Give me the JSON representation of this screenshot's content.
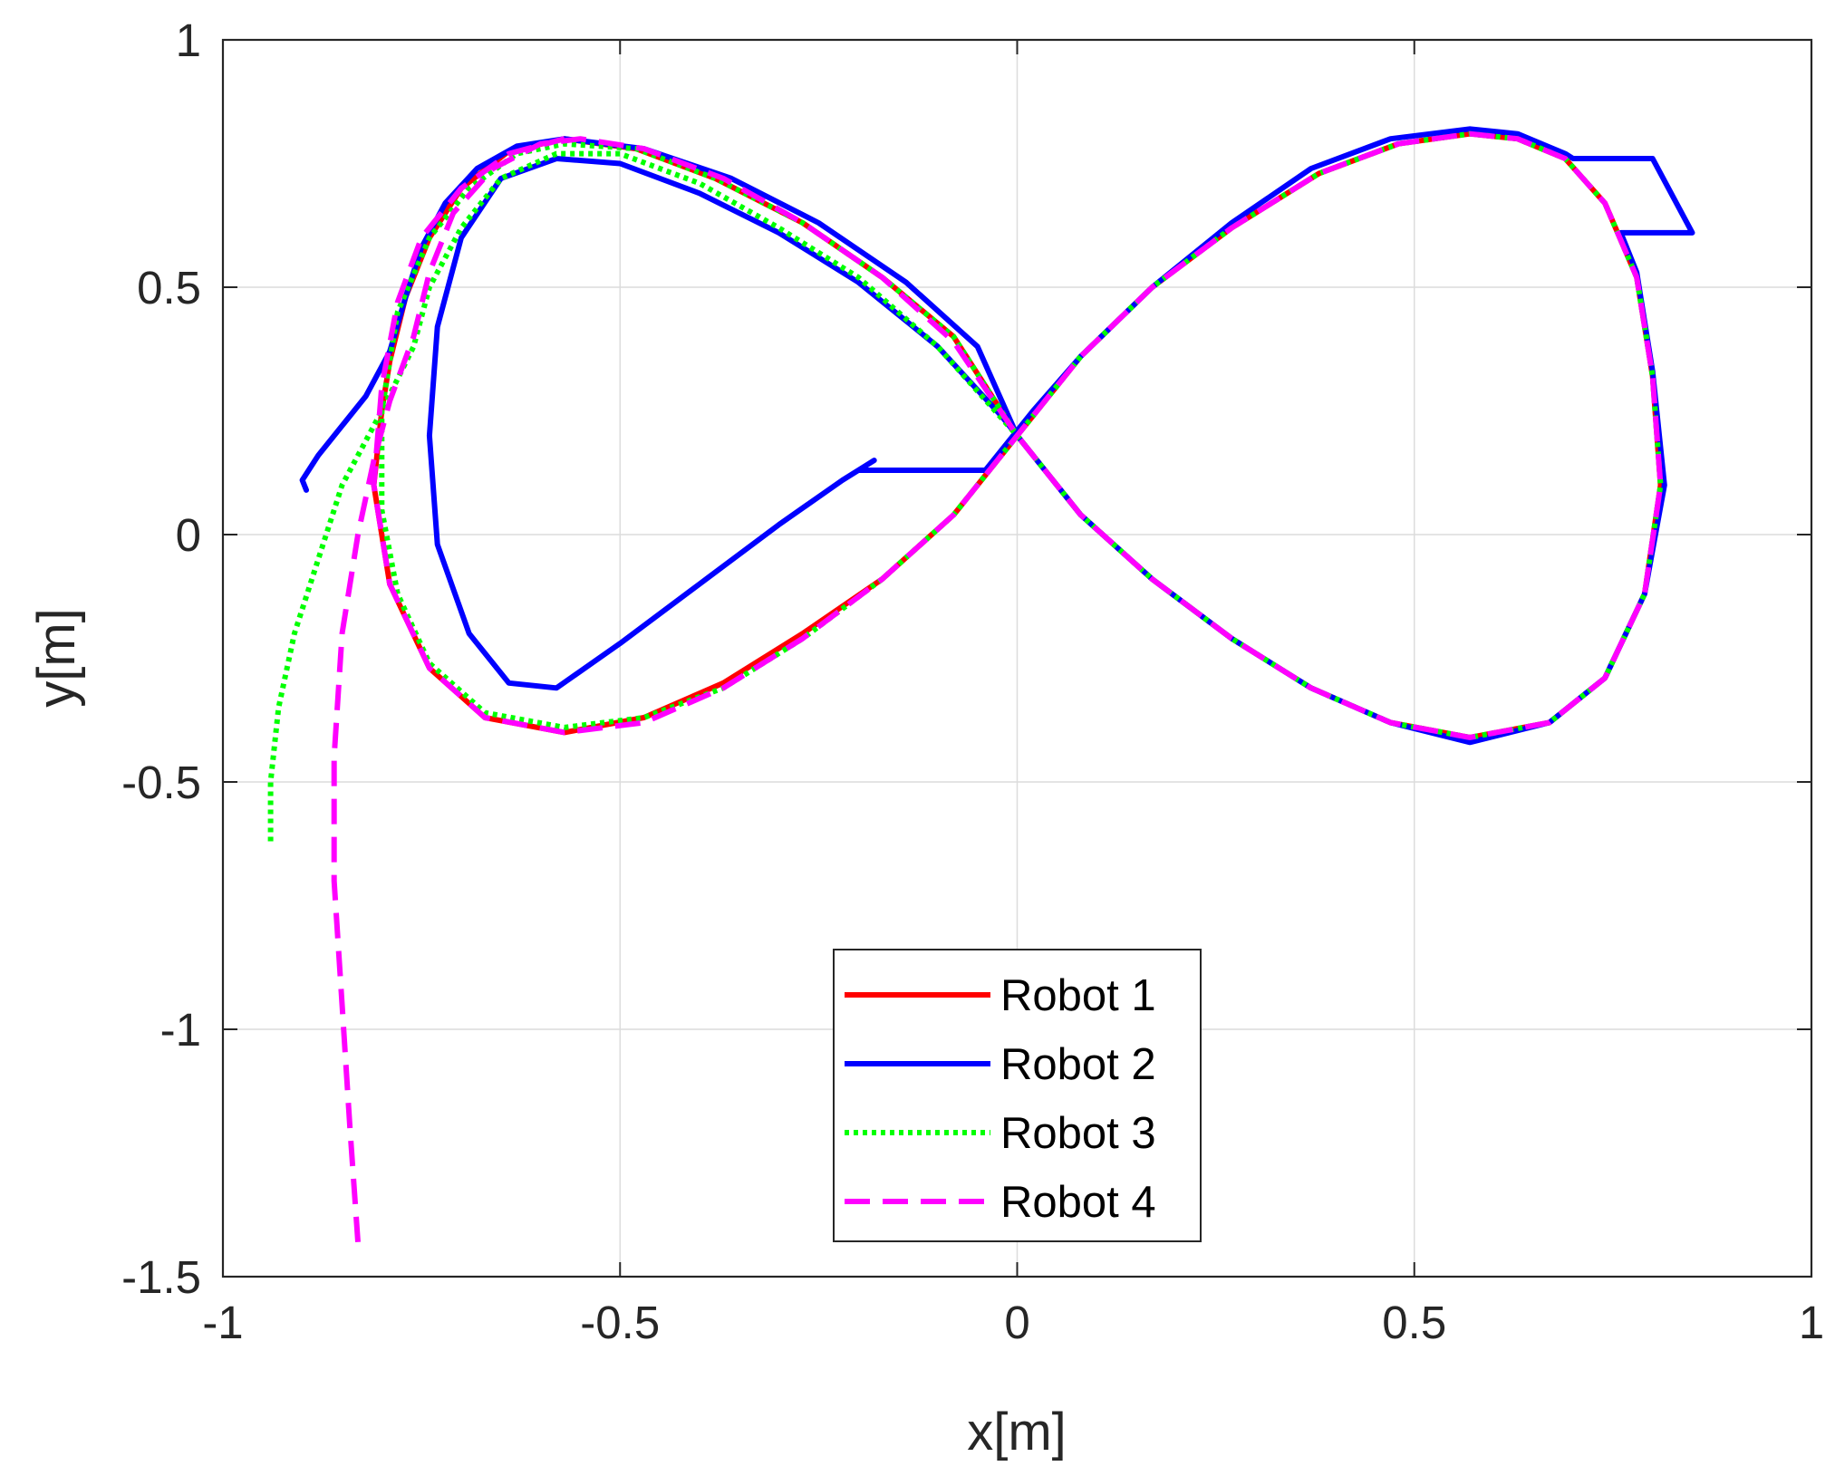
{
  "chart_data": {
    "type": "line",
    "title": "",
    "xlabel": "x[m]",
    "ylabel": "y[m]",
    "xlim": [
      -1,
      1
    ],
    "ylim": [
      -1.5,
      1
    ],
    "grid": true,
    "legend_position": "bottom-center",
    "xticks": [
      -1,
      -0.5,
      0,
      0.5,
      1
    ],
    "xtick_labels": [
      "-1",
      "-0.5",
      "0",
      "0.5",
      "1"
    ],
    "yticks": [
      -1.5,
      -1,
      -0.5,
      0,
      0.5,
      1
    ],
    "ytick_labels": [
      "-1.5",
      "-1",
      "-0.5",
      "0",
      "0.5",
      "1"
    ],
    "series": [
      {
        "name": "Robot 1",
        "color": "#ff0000",
        "style": "solid",
        "points": [
          [
            -0.79,
            0.35
          ],
          [
            -0.77,
            0.48
          ],
          [
            -0.74,
            0.6
          ],
          [
            -0.7,
            0.7
          ],
          [
            -0.64,
            0.775
          ],
          [
            -0.57,
            0.8
          ],
          [
            -0.48,
            0.78
          ],
          [
            -0.38,
            0.72
          ],
          [
            -0.27,
            0.63
          ],
          [
            -0.17,
            0.52
          ],
          [
            -0.08,
            0.4
          ],
          [
            0,
            0.2
          ],
          [
            0.08,
            0.04
          ],
          [
            0.17,
            -0.09
          ],
          [
            0.27,
            -0.21
          ],
          [
            0.37,
            -0.31
          ],
          [
            0.47,
            -0.38
          ],
          [
            0.57,
            -0.41
          ],
          [
            0.67,
            -0.38
          ],
          [
            0.74,
            -0.29
          ],
          [
            0.79,
            -0.12
          ],
          [
            0.81,
            0.1
          ],
          [
            0.8,
            0.32
          ],
          [
            0.78,
            0.52
          ],
          [
            0.74,
            0.67
          ],
          [
            0.69,
            0.76
          ],
          [
            0.63,
            0.8
          ],
          [
            0.57,
            0.81
          ],
          [
            0.48,
            0.79
          ],
          [
            0.38,
            0.73
          ],
          [
            0.27,
            0.62
          ],
          [
            0.17,
            0.5
          ],
          [
            0.08,
            0.36
          ],
          [
            0,
            0.2
          ],
          [
            -0.08,
            0.04
          ],
          [
            -0.17,
            -0.09
          ],
          [
            -0.27,
            -0.2
          ],
          [
            -0.37,
            -0.3
          ],
          [
            -0.47,
            -0.37
          ],
          [
            -0.57,
            -0.4
          ],
          [
            -0.67,
            -0.37
          ],
          [
            -0.74,
            -0.27
          ],
          [
            -0.79,
            -0.1
          ],
          [
            -0.81,
            0.1
          ],
          [
            -0.8,
            0.25
          ],
          [
            -0.79,
            0.35
          ]
        ]
      },
      {
        "name": "Robot 2",
        "color": "#0000ff",
        "style": "solid",
        "points": [
          [
            -0.895,
            0.09
          ],
          [
            -0.9,
            0.11
          ],
          [
            -0.88,
            0.16
          ],
          [
            -0.85,
            0.22
          ],
          [
            -0.82,
            0.28
          ],
          [
            -0.79,
            0.37
          ],
          [
            -0.77,
            0.48
          ],
          [
            -0.75,
            0.58
          ],
          [
            -0.72,
            0.67
          ],
          [
            -0.68,
            0.74
          ],
          [
            -0.63,
            0.785
          ],
          [
            -0.57,
            0.8
          ],
          [
            -0.47,
            0.78
          ],
          [
            -0.36,
            0.72
          ],
          [
            -0.25,
            0.63
          ],
          [
            -0.14,
            0.51
          ],
          [
            -0.05,
            0.38
          ],
          [
            0,
            0.2
          ],
          [
            0.08,
            0.04
          ],
          [
            0.17,
            -0.09
          ],
          [
            0.27,
            -0.21
          ],
          [
            0.37,
            -0.31
          ],
          [
            0.47,
            -0.38
          ],
          [
            0.57,
            -0.42
          ],
          [
            0.67,
            -0.38
          ],
          [
            0.74,
            -0.29
          ],
          [
            0.79,
            -0.12
          ],
          [
            0.815,
            0.1
          ],
          [
            0.8,
            0.33
          ],
          [
            0.78,
            0.53
          ],
          [
            0.76,
            0.61
          ],
          [
            0.85,
            0.61
          ],
          [
            0.8,
            0.76
          ],
          [
            0.7,
            0.76
          ],
          [
            0.69,
            0.77
          ],
          [
            0.63,
            0.81
          ],
          [
            0.57,
            0.82
          ],
          [
            0.47,
            0.8
          ],
          [
            0.37,
            0.74
          ],
          [
            0.27,
            0.63
          ],
          [
            0.17,
            0.5
          ],
          [
            0.08,
            0.36
          ],
          [
            0.02,
            0.25
          ],
          [
            -0.04,
            0.13
          ],
          [
            -0.2,
            0.13
          ],
          [
            -0.18,
            0.15
          ],
          [
            -0.22,
            0.11
          ],
          [
            -0.3,
            0.02
          ],
          [
            -0.4,
            -0.1
          ],
          [
            -0.5,
            -0.22
          ],
          [
            -0.58,
            -0.31
          ],
          [
            -0.64,
            -0.3
          ],
          [
            -0.69,
            -0.2
          ],
          [
            -0.73,
            -0.02
          ],
          [
            -0.74,
            0.2
          ],
          [
            -0.73,
            0.42
          ],
          [
            -0.7,
            0.6
          ],
          [
            -0.65,
            0.72
          ],
          [
            -0.58,
            0.76
          ],
          [
            -0.5,
            0.75
          ],
          [
            -0.4,
            0.69
          ],
          [
            -0.3,
            0.61
          ],
          [
            -0.2,
            0.51
          ],
          [
            -0.1,
            0.38
          ],
          [
            -0.02,
            0.24
          ],
          [
            0,
            0.2
          ]
        ]
      },
      {
        "name": "Robot 3",
        "color": "#00ff00",
        "style": "dotted",
        "points": [
          [
            -0.94,
            -0.62
          ],
          [
            -0.94,
            -0.5
          ],
          [
            -0.93,
            -0.35
          ],
          [
            -0.91,
            -0.2
          ],
          [
            -0.88,
            -0.05
          ],
          [
            -0.85,
            0.1
          ],
          [
            -0.8,
            0.25
          ],
          [
            -0.76,
            0.38
          ],
          [
            -0.74,
            0.5
          ],
          [
            -0.7,
            0.62
          ],
          [
            -0.65,
            0.72
          ],
          [
            -0.58,
            0.77
          ],
          [
            -0.5,
            0.77
          ],
          [
            -0.4,
            0.71
          ],
          [
            -0.3,
            0.62
          ],
          [
            -0.2,
            0.52
          ],
          [
            -0.1,
            0.38
          ],
          [
            0,
            0.2
          ],
          [
            0.08,
            0.04
          ],
          [
            0.17,
            -0.09
          ],
          [
            0.27,
            -0.21
          ],
          [
            0.37,
            -0.31
          ],
          [
            0.47,
            -0.38
          ],
          [
            0.57,
            -0.41
          ],
          [
            0.67,
            -0.38
          ],
          [
            0.74,
            -0.29
          ],
          [
            0.79,
            -0.12
          ],
          [
            0.81,
            0.1
          ],
          [
            0.8,
            0.32
          ],
          [
            0.78,
            0.52
          ],
          [
            0.74,
            0.67
          ],
          [
            0.69,
            0.76
          ],
          [
            0.63,
            0.8
          ],
          [
            0.57,
            0.81
          ],
          [
            0.48,
            0.79
          ],
          [
            0.38,
            0.73
          ],
          [
            0.27,
            0.62
          ],
          [
            0.17,
            0.5
          ],
          [
            0.08,
            0.36
          ],
          [
            0,
            0.2
          ],
          [
            -0.08,
            0.04
          ],
          [
            -0.17,
            -0.09
          ],
          [
            -0.27,
            -0.21
          ],
          [
            -0.37,
            -0.31
          ],
          [
            -0.47,
            -0.37
          ],
          [
            -0.57,
            -0.39
          ],
          [
            -0.67,
            -0.36
          ],
          [
            -0.74,
            -0.26
          ],
          [
            -0.78,
            -0.12
          ],
          [
            -0.8,
            0.05
          ],
          [
            -0.8,
            0.25
          ],
          [
            -0.78,
            0.45
          ],
          [
            -0.74,
            0.6
          ],
          [
            -0.69,
            0.7
          ],
          [
            -0.63,
            0.77
          ],
          [
            -0.57,
            0.79
          ],
          [
            -0.48,
            0.78
          ],
          [
            -0.38,
            0.72
          ],
          [
            -0.27,
            0.63
          ],
          [
            -0.17,
            0.52
          ],
          [
            -0.08,
            0.4
          ],
          [
            0,
            0.2
          ]
        ]
      },
      {
        "name": "Robot 4",
        "color": "#ff00ff",
        "style": "dashed",
        "points": [
          [
            -0.83,
            -1.43
          ],
          [
            -0.84,
            -1.2
          ],
          [
            -0.85,
            -0.95
          ],
          [
            -0.86,
            -0.7
          ],
          [
            -0.86,
            -0.45
          ],
          [
            -0.85,
            -0.2
          ],
          [
            -0.83,
            0.0
          ],
          [
            -0.81,
            0.15
          ],
          [
            -0.79,
            0.27
          ],
          [
            -0.76,
            0.4
          ],
          [
            -0.74,
            0.53
          ],
          [
            -0.71,
            0.65
          ],
          [
            -0.66,
            0.74
          ],
          [
            -0.6,
            0.79
          ],
          [
            -0.55,
            0.8
          ],
          [
            -0.47,
            0.78
          ],
          [
            -0.37,
            0.72
          ],
          [
            -0.27,
            0.63
          ],
          [
            -0.17,
            0.52
          ],
          [
            -0.08,
            0.39
          ],
          [
            0,
            0.2
          ],
          [
            0.08,
            0.04
          ],
          [
            0.17,
            -0.09
          ],
          [
            0.27,
            -0.21
          ],
          [
            0.37,
            -0.31
          ],
          [
            0.47,
            -0.38
          ],
          [
            0.57,
            -0.41
          ],
          [
            0.67,
            -0.38
          ],
          [
            0.74,
            -0.29
          ],
          [
            0.79,
            -0.12
          ],
          [
            0.81,
            0.1
          ],
          [
            0.8,
            0.32
          ],
          [
            0.78,
            0.52
          ],
          [
            0.74,
            0.67
          ],
          [
            0.69,
            0.76
          ],
          [
            0.63,
            0.8
          ],
          [
            0.57,
            0.81
          ],
          [
            0.48,
            0.79
          ],
          [
            0.38,
            0.73
          ],
          [
            0.27,
            0.62
          ],
          [
            0.17,
            0.5
          ],
          [
            0.08,
            0.36
          ],
          [
            0,
            0.2
          ],
          [
            -0.08,
            0.04
          ],
          [
            -0.17,
            -0.09
          ],
          [
            -0.27,
            -0.21
          ],
          [
            -0.37,
            -0.31
          ],
          [
            -0.47,
            -0.38
          ],
          [
            -0.57,
            -0.4
          ],
          [
            -0.67,
            -0.37
          ],
          [
            -0.74,
            -0.27
          ],
          [
            -0.79,
            -0.1
          ],
          [
            -0.81,
            0.1
          ],
          [
            -0.8,
            0.3
          ],
          [
            -0.78,
            0.47
          ],
          [
            -0.75,
            0.6
          ],
          [
            -0.7,
            0.7
          ],
          [
            -0.64,
            0.77
          ],
          [
            -0.57,
            0.8
          ]
        ]
      }
    ]
  }
}
